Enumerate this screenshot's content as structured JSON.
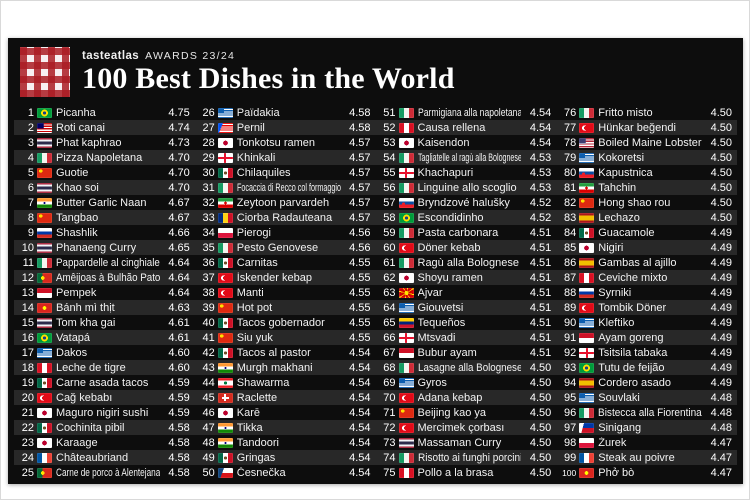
{
  "header": {
    "brand": "tasteatlas",
    "awards_label": "AWARDS 23/24",
    "title": "100 Best Dishes in the World"
  },
  "colors": {
    "panel_background": "#0d0d0d",
    "row_stripe": "#282828",
    "text": "#f2f2f2",
    "logo_red": "#aa1c23",
    "page_background": "#ffffff"
  },
  "chart_data": {
    "type": "table",
    "title": "100 Best Dishes in the World",
    "subtitle": "tasteatlas AWARDS 23/24",
    "columns": [
      "rank",
      "country",
      "dish",
      "rating"
    ],
    "rows": [
      [
        1,
        "br",
        "Picanha",
        "4.75"
      ],
      [
        2,
        "my",
        "Roti canai",
        "4.74"
      ],
      [
        3,
        "th",
        "Phat kaphrao",
        "4.73"
      ],
      [
        4,
        "it",
        "Pizza Napoletana",
        "4.70"
      ],
      [
        5,
        "cn",
        "Guotie",
        "4.70"
      ],
      [
        6,
        "th",
        "Khao soi",
        "4.70"
      ],
      [
        7,
        "in",
        "Butter Garlic Naan",
        "4.67"
      ],
      [
        8,
        "cn",
        "Tangbao",
        "4.67"
      ],
      [
        9,
        "ru",
        "Shashlik",
        "4.66"
      ],
      [
        10,
        "th",
        "Phanaeng Curry",
        "4.65"
      ],
      [
        11,
        "it",
        "Pappardelle al cinghiale",
        "4.64"
      ],
      [
        12,
        "pt",
        "Amêijoas à Bulhão Pato",
        "4.64"
      ],
      [
        13,
        "id",
        "Pempek",
        "4.64"
      ],
      [
        14,
        "vn",
        "Bánh mì thịt",
        "4.63"
      ],
      [
        15,
        "th",
        "Tom kha gai",
        "4.61"
      ],
      [
        16,
        "br",
        "Vatapá",
        "4.61"
      ],
      [
        17,
        "gr",
        "Dakos",
        "4.60"
      ],
      [
        18,
        "pe",
        "Leche de tigre",
        "4.60"
      ],
      [
        19,
        "mx",
        "Carne asada tacos",
        "4.59"
      ],
      [
        20,
        "tr",
        "Cağ kebabı",
        "4.59"
      ],
      [
        21,
        "jp",
        "Maguro nigiri sushi",
        "4.59"
      ],
      [
        22,
        "mx",
        "Cochinita pibil",
        "4.58"
      ],
      [
        23,
        "jp",
        "Karaage",
        "4.58"
      ],
      [
        24,
        "fr",
        "Châteaubriand",
        "4.58"
      ],
      [
        25,
        "pt",
        "Carne de porco à Alentejana",
        "4.58"
      ],
      [
        26,
        "gr",
        "Païdakia",
        "4.58"
      ],
      [
        27,
        "pr",
        "Pernil",
        "4.58"
      ],
      [
        28,
        "jp",
        "Tonkotsu ramen",
        "4.57"
      ],
      [
        29,
        "ge",
        "Khinkali",
        "4.57"
      ],
      [
        30,
        "mx",
        "Chilaquiles",
        "4.57"
      ],
      [
        31,
        "it",
        "Focaccia di Recco col formaggio",
        "4.57"
      ],
      [
        32,
        "ir",
        "Zeytoon parvardeh",
        "4.57"
      ],
      [
        33,
        "ro",
        "Ciorba Radauteana",
        "4.57"
      ],
      [
        34,
        "pl",
        "Pierogi",
        "4.56"
      ],
      [
        35,
        "it",
        "Pesto Genovese",
        "4.56"
      ],
      [
        36,
        "mx",
        "Carnitas",
        "4.55"
      ],
      [
        37,
        "tr",
        "İskender kebap",
        "4.55"
      ],
      [
        38,
        "tr",
        "Manti",
        "4.55"
      ],
      [
        39,
        "cn",
        "Hot pot",
        "4.55"
      ],
      [
        40,
        "mx",
        "Tacos gobernador",
        "4.55"
      ],
      [
        41,
        "cn",
        "Siu yuk",
        "4.55"
      ],
      [
        42,
        "mx",
        "Tacos al pastor",
        "4.54"
      ],
      [
        43,
        "in",
        "Murgh makhani",
        "4.54"
      ],
      [
        44,
        "lb",
        "Shawarma",
        "4.54"
      ],
      [
        45,
        "ch",
        "Raclette",
        "4.54"
      ],
      [
        46,
        "jp",
        "Karē",
        "4.54"
      ],
      [
        47,
        "in",
        "Tikka",
        "4.54"
      ],
      [
        48,
        "in",
        "Tandoori",
        "4.54"
      ],
      [
        49,
        "mx",
        "Gringas",
        "4.54"
      ],
      [
        50,
        "cz",
        "Česnečka",
        "4.54"
      ],
      [
        51,
        "it",
        "Parmigiana alla napoletana",
        "4.54"
      ],
      [
        52,
        "pe",
        "Causa rellena",
        "4.54"
      ],
      [
        53,
        "jp",
        "Kaisendon",
        "4.54"
      ],
      [
        54,
        "it",
        "Tagliatelle al ragù alla Bolognese",
        "4.53"
      ],
      [
        55,
        "ge",
        "Khachapuri",
        "4.53"
      ],
      [
        56,
        "it",
        "Linguine allo scoglio",
        "4.53"
      ],
      [
        57,
        "sk",
        "Bryndzové halušky",
        "4.52"
      ],
      [
        58,
        "br",
        "Escondidinho",
        "4.52"
      ],
      [
        59,
        "it",
        "Pasta carbonara",
        "4.51"
      ],
      [
        60,
        "tr",
        "Döner kebab",
        "4.51"
      ],
      [
        61,
        "it",
        "Ragù alla Bolognese",
        "4.51"
      ],
      [
        62,
        "jp",
        "Shoyu ramen",
        "4.51"
      ],
      [
        63,
        "mk",
        "Ajvar",
        "4.51"
      ],
      [
        64,
        "gr",
        "Giouvetsi",
        "4.51"
      ],
      [
        65,
        "ve",
        "Tequeños",
        "4.51"
      ],
      [
        66,
        "ge",
        "Mtsvadi",
        "4.51"
      ],
      [
        67,
        "id",
        "Bubur ayam",
        "4.51"
      ],
      [
        68,
        "it",
        "Lasagne alla Bolognese",
        "4.50"
      ],
      [
        69,
        "gr",
        "Gyros",
        "4.50"
      ],
      [
        70,
        "tr",
        "Adana kebap",
        "4.50"
      ],
      [
        71,
        "cn",
        "Beijing kao ya",
        "4.50"
      ],
      [
        72,
        "tr",
        "Mercimek çorbası",
        "4.50"
      ],
      [
        73,
        "th",
        "Massaman Curry",
        "4.50"
      ],
      [
        74,
        "it",
        "Risotto ai funghi porcini",
        "4.50"
      ],
      [
        75,
        "pe",
        "Pollo a la brasa",
        "4.50"
      ],
      [
        76,
        "it",
        "Fritto misto",
        "4.50"
      ],
      [
        77,
        "tr",
        "Hünkar beğendi",
        "4.50"
      ],
      [
        78,
        "us",
        "Boiled Maine Lobster",
        "4.50"
      ],
      [
        79,
        "gr",
        "Kokoretsi",
        "4.50"
      ],
      [
        80,
        "sk",
        "Kapustnica",
        "4.50"
      ],
      [
        81,
        "ir",
        "Tahchin",
        "4.50"
      ],
      [
        82,
        "cn",
        "Hong shao rou",
        "4.50"
      ],
      [
        83,
        "es",
        "Lechazo",
        "4.50"
      ],
      [
        84,
        "mx",
        "Guacamole",
        "4.49"
      ],
      [
        85,
        "jp",
        "Nigiri",
        "4.49"
      ],
      [
        86,
        "es",
        "Gambas al ajillo",
        "4.49"
      ],
      [
        87,
        "pe",
        "Ceviche mixto",
        "4.49"
      ],
      [
        88,
        "ru",
        "Syrniki",
        "4.49"
      ],
      [
        89,
        "tr",
        "Tombik Döner",
        "4.49"
      ],
      [
        90,
        "gr",
        "Kleftiko",
        "4.49"
      ],
      [
        91,
        "id",
        "Ayam goreng",
        "4.49"
      ],
      [
        92,
        "ge",
        "Tsitsila tabaka",
        "4.49"
      ],
      [
        93,
        "br",
        "Tutu de feijão",
        "4.49"
      ],
      [
        94,
        "es",
        "Cordero asado",
        "4.49"
      ],
      [
        95,
        "gr",
        "Souvlaki",
        "4.48"
      ],
      [
        96,
        "it",
        "Bistecca alla Fiorentina",
        "4.48"
      ],
      [
        97,
        "ph",
        "Sinigang",
        "4.48"
      ],
      [
        98,
        "pl",
        "Żurek",
        "4.47"
      ],
      [
        99,
        "fr",
        "Steak au poivre",
        "4.47"
      ],
      [
        100,
        "vn",
        "Phở bò",
        "4.47"
      ]
    ]
  }
}
